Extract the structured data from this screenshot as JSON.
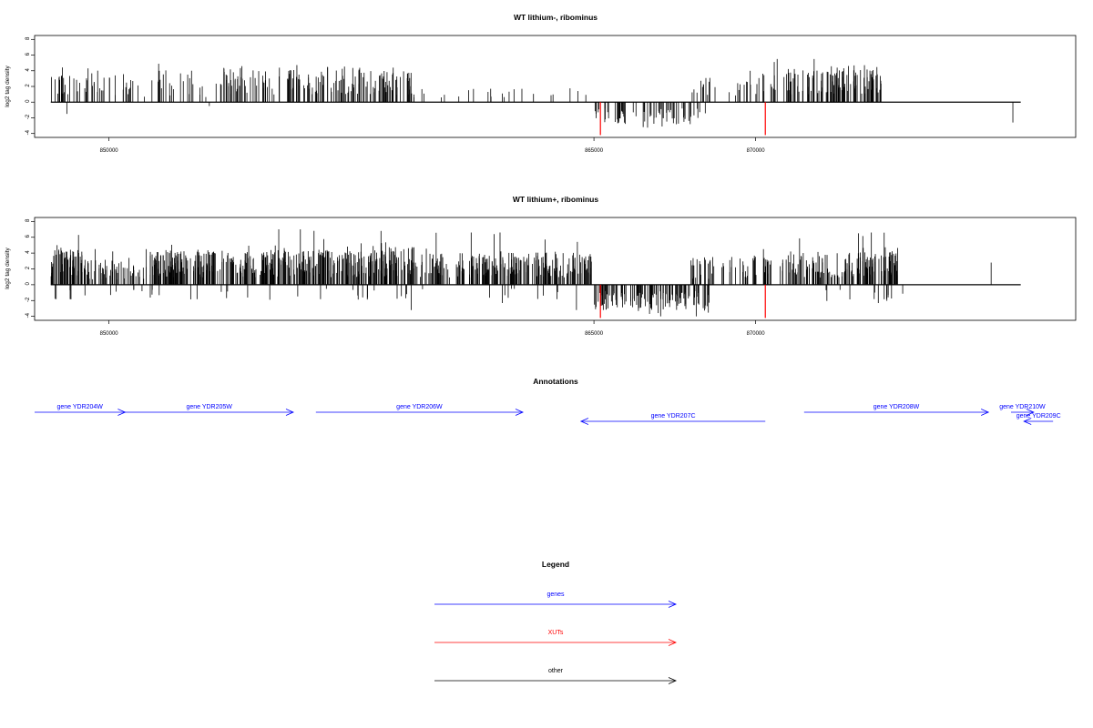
{
  "colors": {
    "genes": "#0000ff",
    "xuts": "#ff0000",
    "other": "#000000",
    "signal": "#000000",
    "highlight": "#ff0000"
  },
  "chart_data": [
    {
      "type": "bar",
      "title": "WT lithium-, ribominus",
      "ylabel": "log2 tag density",
      "xlim": [
        847700,
        879900
      ],
      "ylim": [
        -4.5,
        8.5
      ],
      "yticks": [
        -4,
        -2,
        0,
        2,
        4,
        6,
        8
      ],
      "xticks": [
        850000,
        865000,
        870000
      ],
      "xtick_labels": [
        "850000",
        "865000",
        "870000"
      ],
      "seed": 17,
      "baseline_range": [
        848200,
        878200
      ],
      "positive_segments": [
        {
          "x": [
            848200,
            850600
          ],
          "density": 0.55,
          "mean": 2.2,
          "max": 5.0
        },
        {
          "x": [
            850600,
            851400
          ],
          "density": 0.25,
          "mean": 1.6,
          "max": 3.5
        },
        {
          "x": [
            851400,
            852600
          ],
          "density": 0.45,
          "mean": 2.3,
          "max": 4.9
        },
        {
          "x": [
            852600,
            853500
          ],
          "density": 0.22,
          "mean": 1.5,
          "max": 3.2
        },
        {
          "x": [
            853500,
            857300
          ],
          "density": 0.75,
          "mean": 2.6,
          "max": 4.8
        },
        {
          "x": [
            857300,
            859400
          ],
          "density": 0.9,
          "mean": 2.4,
          "max": 4.4
        },
        {
          "x": [
            859400,
            864900
          ],
          "density": 0.12,
          "mean": 1.0,
          "max": 2.0
        },
        {
          "x": [
            868000,
            869500
          ],
          "density": 0.3,
          "mean": 1.8,
          "max": 4.2
        },
        {
          "x": [
            869500,
            872400
          ],
          "density": 0.6,
          "mean": 2.4,
          "max": 5.5
        },
        {
          "x": [
            872300,
            873900
          ],
          "density": 1.2,
          "mean": 2.7,
          "max": 5.0
        }
      ],
      "negative_segments": [
        {
          "x": [
            848600,
            849000
          ],
          "density": 0.05,
          "mean": -1.5,
          "max": -1.5
        },
        {
          "x": [
            853000,
            853200
          ],
          "density": 0.05,
          "mean": -1.0,
          "max": -1.0
        },
        {
          "x": [
            865000,
            868500
          ],
          "density": 0.55,
          "mean": -1.8,
          "max": -3.6
        },
        {
          "x": [
            877900,
            878000
          ],
          "density": 0.05,
          "mean": -2.6,
          "max": -2.6
        }
      ],
      "red_marks": [
        {
          "x": 865200,
          "y": -4.2
        },
        {
          "x": 870300,
          "y": -4.2
        }
      ]
    },
    {
      "type": "bar",
      "title": "WT lithium+, ribominus",
      "ylabel": "log2 tag density",
      "xlim": [
        847700,
        879900
      ],
      "ylim": [
        -4.5,
        8.5
      ],
      "yticks": [
        -4,
        -2,
        0,
        2,
        4,
        6,
        8
      ],
      "xticks": [
        850000,
        865000,
        870000
      ],
      "xtick_labels": [
        "850000",
        "865000",
        "870000"
      ],
      "seed": 29,
      "baseline_range": [
        848200,
        878200
      ],
      "positive_segments": [
        {
          "x": [
            848200,
            849200
          ],
          "density": 1.6,
          "mean": 2.6,
          "max": 7.6
        },
        {
          "x": [
            849200,
            851200
          ],
          "density": 0.9,
          "mean": 1.8,
          "max": 4.5
        },
        {
          "x": [
            851200,
            858000
          ],
          "density": 1.5,
          "mean": 2.5,
          "max": 7.0
        },
        {
          "x": [
            858000,
            859500
          ],
          "density": 1.6,
          "mean": 2.7,
          "max": 6.8
        },
        {
          "x": [
            859500,
            865000
          ],
          "density": 1.2,
          "mean": 2.3,
          "max": 6.6
        },
        {
          "x": [
            868000,
            871000
          ],
          "density": 0.6,
          "mean": 2.0,
          "max": 4.5
        },
        {
          "x": [
            871000,
            873300
          ],
          "density": 1.1,
          "mean": 2.4,
          "max": 6.6
        },
        {
          "x": [
            873300,
            874400
          ],
          "density": 1.6,
          "mean": 2.7,
          "max": 6.6
        },
        {
          "x": [
            877200,
            877300
          ],
          "density": 0.05,
          "mean": 2.8,
          "max": 2.8
        }
      ],
      "negative_segments": [
        {
          "x": [
            848300,
            849000
          ],
          "density": 0.2,
          "mean": -1.2,
          "max": -2.0
        },
        {
          "x": [
            849000,
            864800
          ],
          "density": 0.08,
          "mean": -1.2,
          "max": -3.2
        },
        {
          "x": [
            865000,
            868600
          ],
          "density": 1.0,
          "mean": -2.0,
          "max": -4.0
        },
        {
          "x": [
            872000,
            874600
          ],
          "density": 0.15,
          "mean": -1.5,
          "max": -2.5
        }
      ],
      "red_marks": [
        {
          "x": 865200,
          "y": -4.2
        },
        {
          "x": 870300,
          "y": -4.2
        }
      ]
    }
  ],
  "annotations": {
    "title": "Annotations",
    "genes": [
      {
        "label": "gene YDR204W",
        "start": 847700,
        "end": 850500,
        "strand": "+",
        "row": 0
      },
      {
        "label": "gene YDR205W",
        "start": 850500,
        "end": 855700,
        "strand": "+",
        "row": 0
      },
      {
        "label": "gene YDR206W",
        "start": 856400,
        "end": 862800,
        "strand": "+",
        "row": 0
      },
      {
        "label": "gene YDR207C",
        "start": 864600,
        "end": 870300,
        "strand": "-",
        "row": 1
      },
      {
        "label": "gene YDR208W",
        "start": 871500,
        "end": 877200,
        "strand": "+",
        "row": 0
      },
      {
        "label": "gene YDR210W",
        "start": 877900,
        "end": 878600,
        "strand": "+",
        "row": 0
      },
      {
        "label": "gene YDR209C",
        "start": 878300,
        "end": 879200,
        "strand": "-",
        "row": 1
      }
    ]
  },
  "legend": {
    "title": "Legend",
    "items": [
      {
        "label": "genes",
        "color": "#0000ff"
      },
      {
        "label": "XUTs",
        "color": "#ff0000"
      },
      {
        "label": "other",
        "color": "#000000"
      }
    ]
  }
}
